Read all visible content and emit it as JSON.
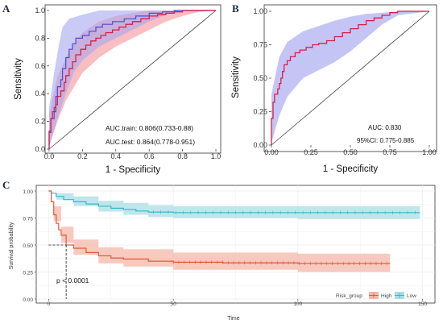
{
  "chart_data": [
    {
      "panel": "A",
      "type": "line",
      "xlabel": "1 - Specificity",
      "ylabel": "Sensitivity",
      "xlim": [
        0,
        1.0
      ],
      "ylim": [
        0,
        1.0
      ],
      "xticks": [
        "0.0",
        "0.2",
        "0.4",
        "0.6",
        "0.8",
        "1.0"
      ],
      "yticks": [
        "0.0",
        "0.2",
        "0.4",
        "0.6",
        "0.8",
        "1.0"
      ],
      "grid": false,
      "annotations": [
        "AUC.train: 0.806(0.733-0.88)",
        "AUC.test: 0.864(0.778-0.951)"
      ],
      "colors": {
        "train": "#d91e48",
        "test": "#4a4ad6",
        "train_band": "#f7a8ac",
        "test_band": "#a6a6f0",
        "diagonal": "#444444"
      },
      "series": [
        {
          "values": [
            [
              0,
              0
            ],
            [
              0,
              0.13
            ],
            [
              0.01,
              0.22
            ],
            [
              0.02,
              0.27
            ],
            [
              0.04,
              0.32
            ],
            [
              0.05,
              0.38
            ],
            [
              0.07,
              0.42
            ],
            [
              0.09,
              0.48
            ],
            [
              0.1,
              0.53
            ],
            [
              0.12,
              0.58
            ],
            [
              0.14,
              0.63
            ],
            [
              0.16,
              0.68
            ],
            [
              0.19,
              0.72
            ],
            [
              0.22,
              0.75
            ],
            [
              0.25,
              0.78
            ],
            [
              0.28,
              0.8
            ],
            [
              0.31,
              0.82
            ],
            [
              0.34,
              0.84
            ],
            [
              0.38,
              0.86
            ],
            [
              0.42,
              0.88
            ],
            [
              0.46,
              0.9
            ],
            [
              0.5,
              0.92
            ],
            [
              0.55,
              0.94
            ],
            [
              0.6,
              0.96
            ],
            [
              0.65,
              0.97
            ],
            [
              0.7,
              0.98
            ],
            [
              0.75,
              0.99
            ],
            [
              0.8,
              1.0
            ],
            [
              1.0,
              1.0
            ]
          ],
          "band_low": [
            [
              0,
              0.02
            ],
            [
              0.05,
              0.2
            ],
            [
              0.1,
              0.35
            ],
            [
              0.15,
              0.45
            ],
            [
              0.2,
              0.55
            ],
            [
              0.3,
              0.66
            ],
            [
              0.4,
              0.74
            ],
            [
              0.5,
              0.8
            ],
            [
              0.6,
              0.86
            ],
            [
              0.7,
              0.92
            ],
            [
              0.8,
              0.96
            ],
            [
              0.9,
              0.99
            ],
            [
              1.0,
              1.0
            ]
          ],
          "band_high": [
            [
              0,
              0.25
            ],
            [
              0.05,
              0.52
            ],
            [
              0.1,
              0.66
            ],
            [
              0.15,
              0.76
            ],
            [
              0.2,
              0.84
            ],
            [
              0.3,
              0.92
            ],
            [
              0.4,
              0.96
            ],
            [
              0.5,
              0.98
            ],
            [
              0.6,
              1.0
            ],
            [
              1.0,
              1.0
            ]
          ]
        },
        {
          "values": [
            [
              0,
              0
            ],
            [
              0,
              0.12
            ],
            [
              0.01,
              0.22
            ],
            [
              0.03,
              0.3
            ],
            [
              0.04,
              0.38
            ],
            [
              0.05,
              0.45
            ],
            [
              0.07,
              0.5
            ],
            [
              0.08,
              0.58
            ],
            [
              0.1,
              0.66
            ],
            [
              0.12,
              0.72
            ],
            [
              0.14,
              0.76
            ],
            [
              0.16,
              0.8
            ],
            [
              0.2,
              0.82
            ],
            [
              0.24,
              0.85
            ],
            [
              0.28,
              0.88
            ],
            [
              0.32,
              0.9
            ],
            [
              0.38,
              0.92
            ],
            [
              0.45,
              0.94
            ],
            [
              0.52,
              0.96
            ],
            [
              0.6,
              0.98
            ],
            [
              0.68,
              0.99
            ],
            [
              0.75,
              1.0
            ],
            [
              1.0,
              1.0
            ]
          ],
          "band_low": [
            [
              0,
              0.02
            ],
            [
              0.05,
              0.22
            ],
            [
              0.1,
              0.4
            ],
            [
              0.15,
              0.56
            ],
            [
              0.2,
              0.64
            ],
            [
              0.3,
              0.74
            ],
            [
              0.4,
              0.8
            ],
            [
              0.5,
              0.86
            ],
            [
              0.6,
              0.92
            ],
            [
              0.7,
              0.97
            ],
            [
              0.8,
              1.0
            ],
            [
              1.0,
              1.0
            ]
          ],
          "band_high": [
            [
              0,
              0.3
            ],
            [
              0.03,
              0.55
            ],
            [
              0.06,
              0.76
            ],
            [
              0.08,
              0.88
            ],
            [
              0.12,
              0.94
            ],
            [
              0.2,
              0.97
            ],
            [
              0.3,
              1.0
            ],
            [
              1.0,
              1.0
            ]
          ]
        }
      ]
    },
    {
      "panel": "B",
      "type": "line",
      "xlabel": "1 - Specificity",
      "ylabel": "Sensitivity",
      "xlim": [
        0,
        1.0
      ],
      "ylim": [
        0,
        1.0
      ],
      "xticks": [
        "0.00",
        "0.25",
        "0.50",
        "0.75",
        "1.00"
      ],
      "yticks": [
        "0.00",
        "0.25",
        "0.50",
        "0.75",
        "1.00"
      ],
      "grid": false,
      "annotations": [
        "AUC: 0.830",
        "95%CI: 0.775-0.885"
      ],
      "colors": {
        "line": "#d91e48",
        "band": "#a6a6f0",
        "diagonal": "#444444"
      },
      "series": [
        {
          "values": [
            [
              0,
              0
            ],
            [
              0,
              0.2
            ],
            [
              0.01,
              0.32
            ],
            [
              0.02,
              0.38
            ],
            [
              0.04,
              0.42
            ],
            [
              0.05,
              0.46
            ],
            [
              0.06,
              0.5
            ],
            [
              0.07,
              0.55
            ],
            [
              0.08,
              0.6
            ],
            [
              0.1,
              0.63
            ],
            [
              0.12,
              0.66
            ],
            [
              0.15,
              0.69
            ],
            [
              0.18,
              0.71
            ],
            [
              0.22,
              0.73
            ],
            [
              0.26,
              0.75
            ],
            [
              0.3,
              0.76
            ],
            [
              0.35,
              0.78
            ],
            [
              0.4,
              0.81
            ],
            [
              0.45,
              0.84
            ],
            [
              0.5,
              0.87
            ],
            [
              0.55,
              0.9
            ],
            [
              0.6,
              0.93
            ],
            [
              0.65,
              0.95
            ],
            [
              0.7,
              0.97
            ],
            [
              0.75,
              0.99
            ],
            [
              0.8,
              1.0
            ],
            [
              1.0,
              1.0
            ]
          ],
          "band_low": [
            [
              0,
              0.02
            ],
            [
              0.05,
              0.22
            ],
            [
              0.1,
              0.36
            ],
            [
              0.2,
              0.5
            ],
            [
              0.3,
              0.56
            ],
            [
              0.4,
              0.62
            ],
            [
              0.5,
              0.7
            ],
            [
              0.6,
              0.8
            ],
            [
              0.7,
              0.9
            ],
            [
              0.8,
              0.97
            ],
            [
              1.0,
              1.0
            ]
          ],
          "band_high": [
            [
              0,
              0.38
            ],
            [
              0.05,
              0.66
            ],
            [
              0.1,
              0.77
            ],
            [
              0.2,
              0.85
            ],
            [
              0.3,
              0.89
            ],
            [
              0.4,
              0.93
            ],
            [
              0.5,
              0.96
            ],
            [
              0.6,
              0.98
            ],
            [
              0.7,
              0.99
            ],
            [
              0.8,
              1.0
            ],
            [
              1.0,
              1.0
            ]
          ]
        }
      ]
    },
    {
      "panel": "C",
      "type": "line",
      "xlabel": "Time",
      "ylabel": "Survival probability",
      "xlim": [
        -5,
        155
      ],
      "ylim": [
        0,
        1.0
      ],
      "xticks": [
        "0",
        "50",
        "100",
        "150"
      ],
      "yticks": [
        "0.00",
        "0.25",
        "0.50",
        "0.75",
        "1.00"
      ],
      "grid": true,
      "legend": {
        "title": "Risk_group",
        "placement": "bottom-right",
        "entries": [
          "High",
          "Low"
        ]
      },
      "annotations": [
        "p < 0.0001"
      ],
      "median_survival_marker": {
        "x": 7,
        "y": 0.5
      },
      "colors": {
        "High": "#e05a3a",
        "Low": "#3bb5c9",
        "High_band": "#f5b7a8",
        "Low_band": "#a9dde6"
      },
      "series": [
        {
          "name": "High",
          "values": [
            [
              0,
              1.0
            ],
            [
              1,
              0.9
            ],
            [
              2,
              0.78
            ],
            [
              3,
              0.7
            ],
            [
              4,
              0.64
            ],
            [
              5,
              0.59
            ],
            [
              7,
              0.5
            ],
            [
              10,
              0.47
            ],
            [
              15,
              0.43
            ],
            [
              20,
              0.4
            ],
            [
              25,
              0.38
            ],
            [
              30,
              0.37
            ],
            [
              40,
              0.35
            ],
            [
              50,
              0.34
            ],
            [
              70,
              0.335
            ],
            [
              100,
              0.33
            ],
            [
              137,
              0.33
            ]
          ],
          "band_low": [
            [
              0,
              1.0
            ],
            [
              2,
              0.72
            ],
            [
              5,
              0.52
            ],
            [
              10,
              0.41
            ],
            [
              20,
              0.33
            ],
            [
              30,
              0.3
            ],
            [
              50,
              0.27
            ],
            [
              100,
              0.25
            ],
            [
              137,
              0.25
            ]
          ],
          "band_high": [
            [
              0,
              1.0
            ],
            [
              2,
              0.86
            ],
            [
              5,
              0.67
            ],
            [
              10,
              0.55
            ],
            [
              20,
              0.48
            ],
            [
              30,
              0.46
            ],
            [
              50,
              0.43
            ],
            [
              100,
              0.42
            ],
            [
              137,
              0.42
            ]
          ]
        },
        {
          "name": "Low",
          "values": [
            [
              0,
              1.0
            ],
            [
              1,
              0.98
            ],
            [
              3,
              0.95
            ],
            [
              6,
              0.92
            ],
            [
              10,
              0.9
            ],
            [
              15,
              0.88
            ],
            [
              20,
              0.86
            ],
            [
              25,
              0.84
            ],
            [
              30,
              0.83
            ],
            [
              35,
              0.815
            ],
            [
              40,
              0.805
            ],
            [
              50,
              0.8
            ],
            [
              100,
              0.8
            ],
            [
              149,
              0.8
            ]
          ],
          "band_low": [
            [
              0,
              1.0
            ],
            [
              3,
              0.92
            ],
            [
              10,
              0.86
            ],
            [
              20,
              0.81
            ],
            [
              30,
              0.78
            ],
            [
              40,
              0.76
            ],
            [
              50,
              0.75
            ],
            [
              100,
              0.74
            ],
            [
              149,
              0.74
            ]
          ],
          "band_high": [
            [
              0,
              1.0
            ],
            [
              3,
              0.98
            ],
            [
              10,
              0.95
            ],
            [
              20,
              0.91
            ],
            [
              30,
              0.89
            ],
            [
              40,
              0.87
            ],
            [
              50,
              0.86
            ],
            [
              100,
              0.86
            ],
            [
              149,
              0.86
            ]
          ]
        }
      ]
    }
  ]
}
